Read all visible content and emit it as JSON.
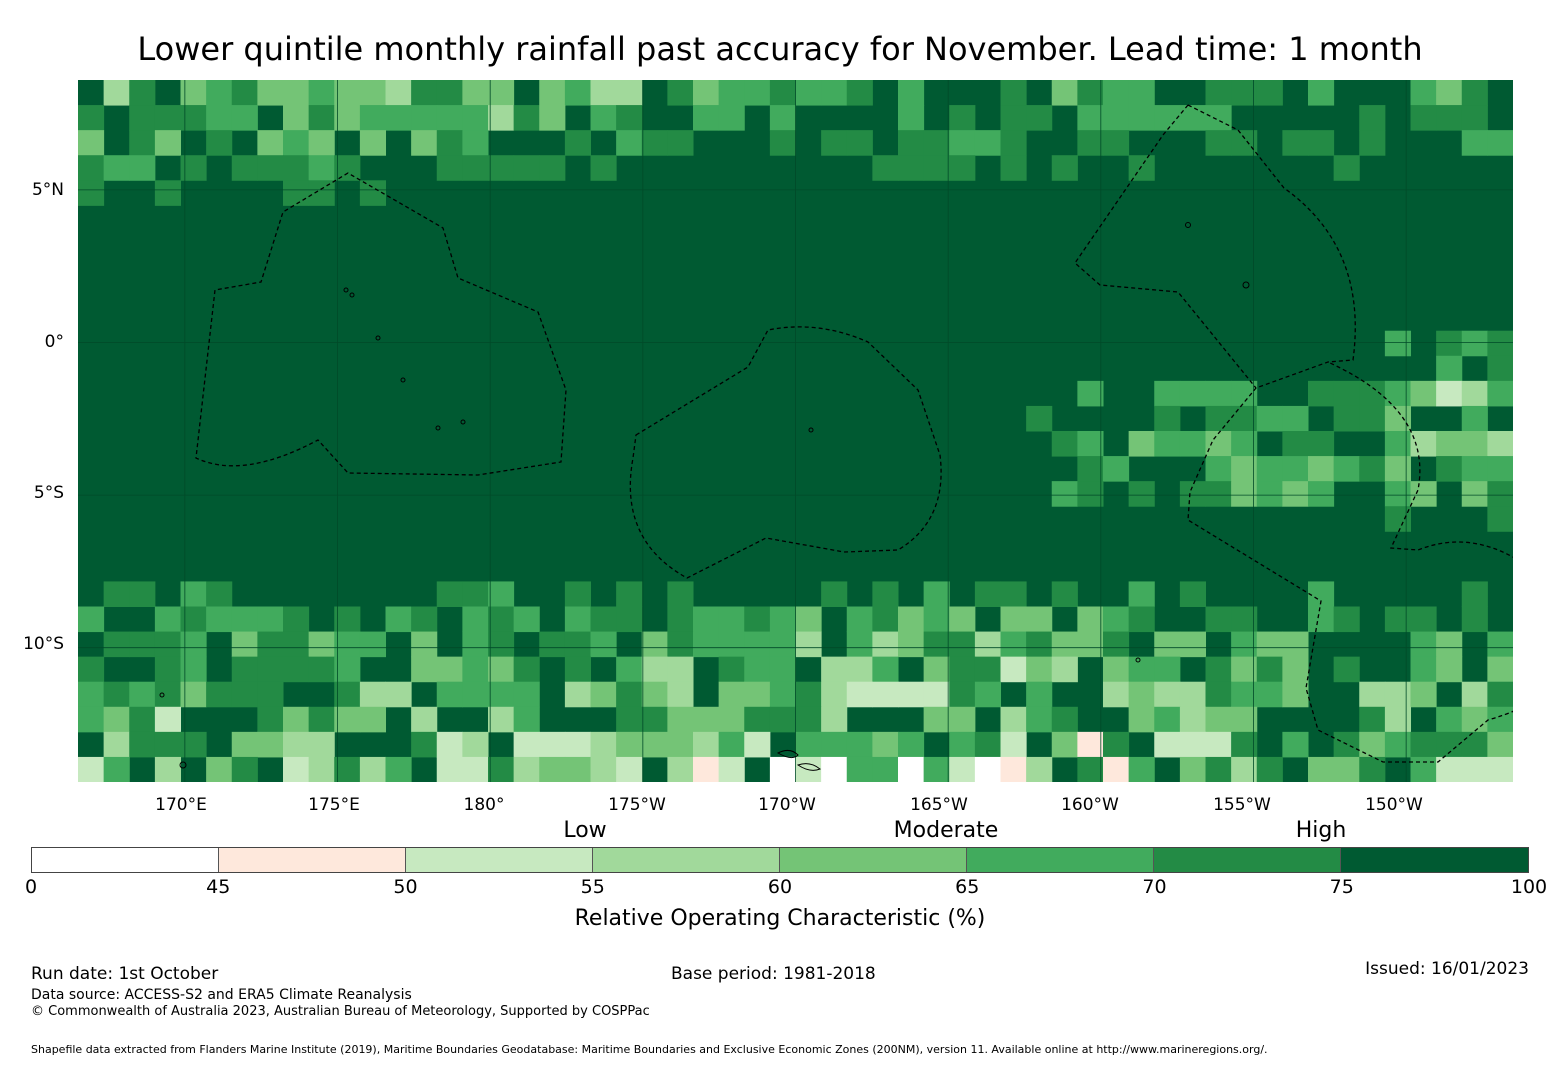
{
  "title": "Lower quintile monthly rainfall past accuracy for November. Lead time: 1 month",
  "map": {
    "lat_labels": [
      "5°N",
      "0°",
      "5°S",
      "10°S"
    ],
    "lon_labels": [
      "170°E",
      "175°E",
      "180°",
      "175°W",
      "170°W",
      "165°W",
      "160°W",
      "155°W",
      "150°W"
    ],
    "lon_range": [
      166.5,
      213.5
    ],
    "lat_range": [
      8.6,
      -14.4
    ],
    "lat_values": [
      5,
      0,
      -5,
      -10
    ],
    "lon_values": [
      170,
      175,
      180,
      185,
      190,
      195,
      200,
      205,
      210
    ],
    "grid_cols": 56,
    "grid_rows": 28
  },
  "legend": {
    "categories": [
      "Low",
      "Moderate",
      "High"
    ],
    "ticks": [
      "0",
      "45",
      "50",
      "55",
      "60",
      "65",
      "70",
      "75",
      "100"
    ],
    "tick_values": [
      0,
      45,
      50,
      55,
      60,
      65,
      70,
      75,
      100
    ],
    "colors": [
      "#ffffff",
      "#fee8dc",
      "#c7e9c0",
      "#a1d99b",
      "#74c476",
      "#41ab5d",
      "#238b45",
      "#005a32"
    ],
    "label": "Relative Operating Characteristic (%)"
  },
  "footer": {
    "run_date": "Run date: 1st October",
    "base_period": "Base period: 1981-2018",
    "issued": "Issued: 16/01/2023",
    "data_source": "Data source: ACCESS-S2 and ERA5 Climate Reanalysis",
    "copyright": "© Commonwealth of Australia 2023, Australian Bureau of Meteorology, Supported by COSPPac",
    "shapefile": "Shapefile data extracted from Flanders Marine Institute (2019), Maritime Boundaries Geodatabase: Maritime Boundaries and Exclusive Economic Zones (200NM), version 11. Available online at http://www.marineregions.org/."
  }
}
